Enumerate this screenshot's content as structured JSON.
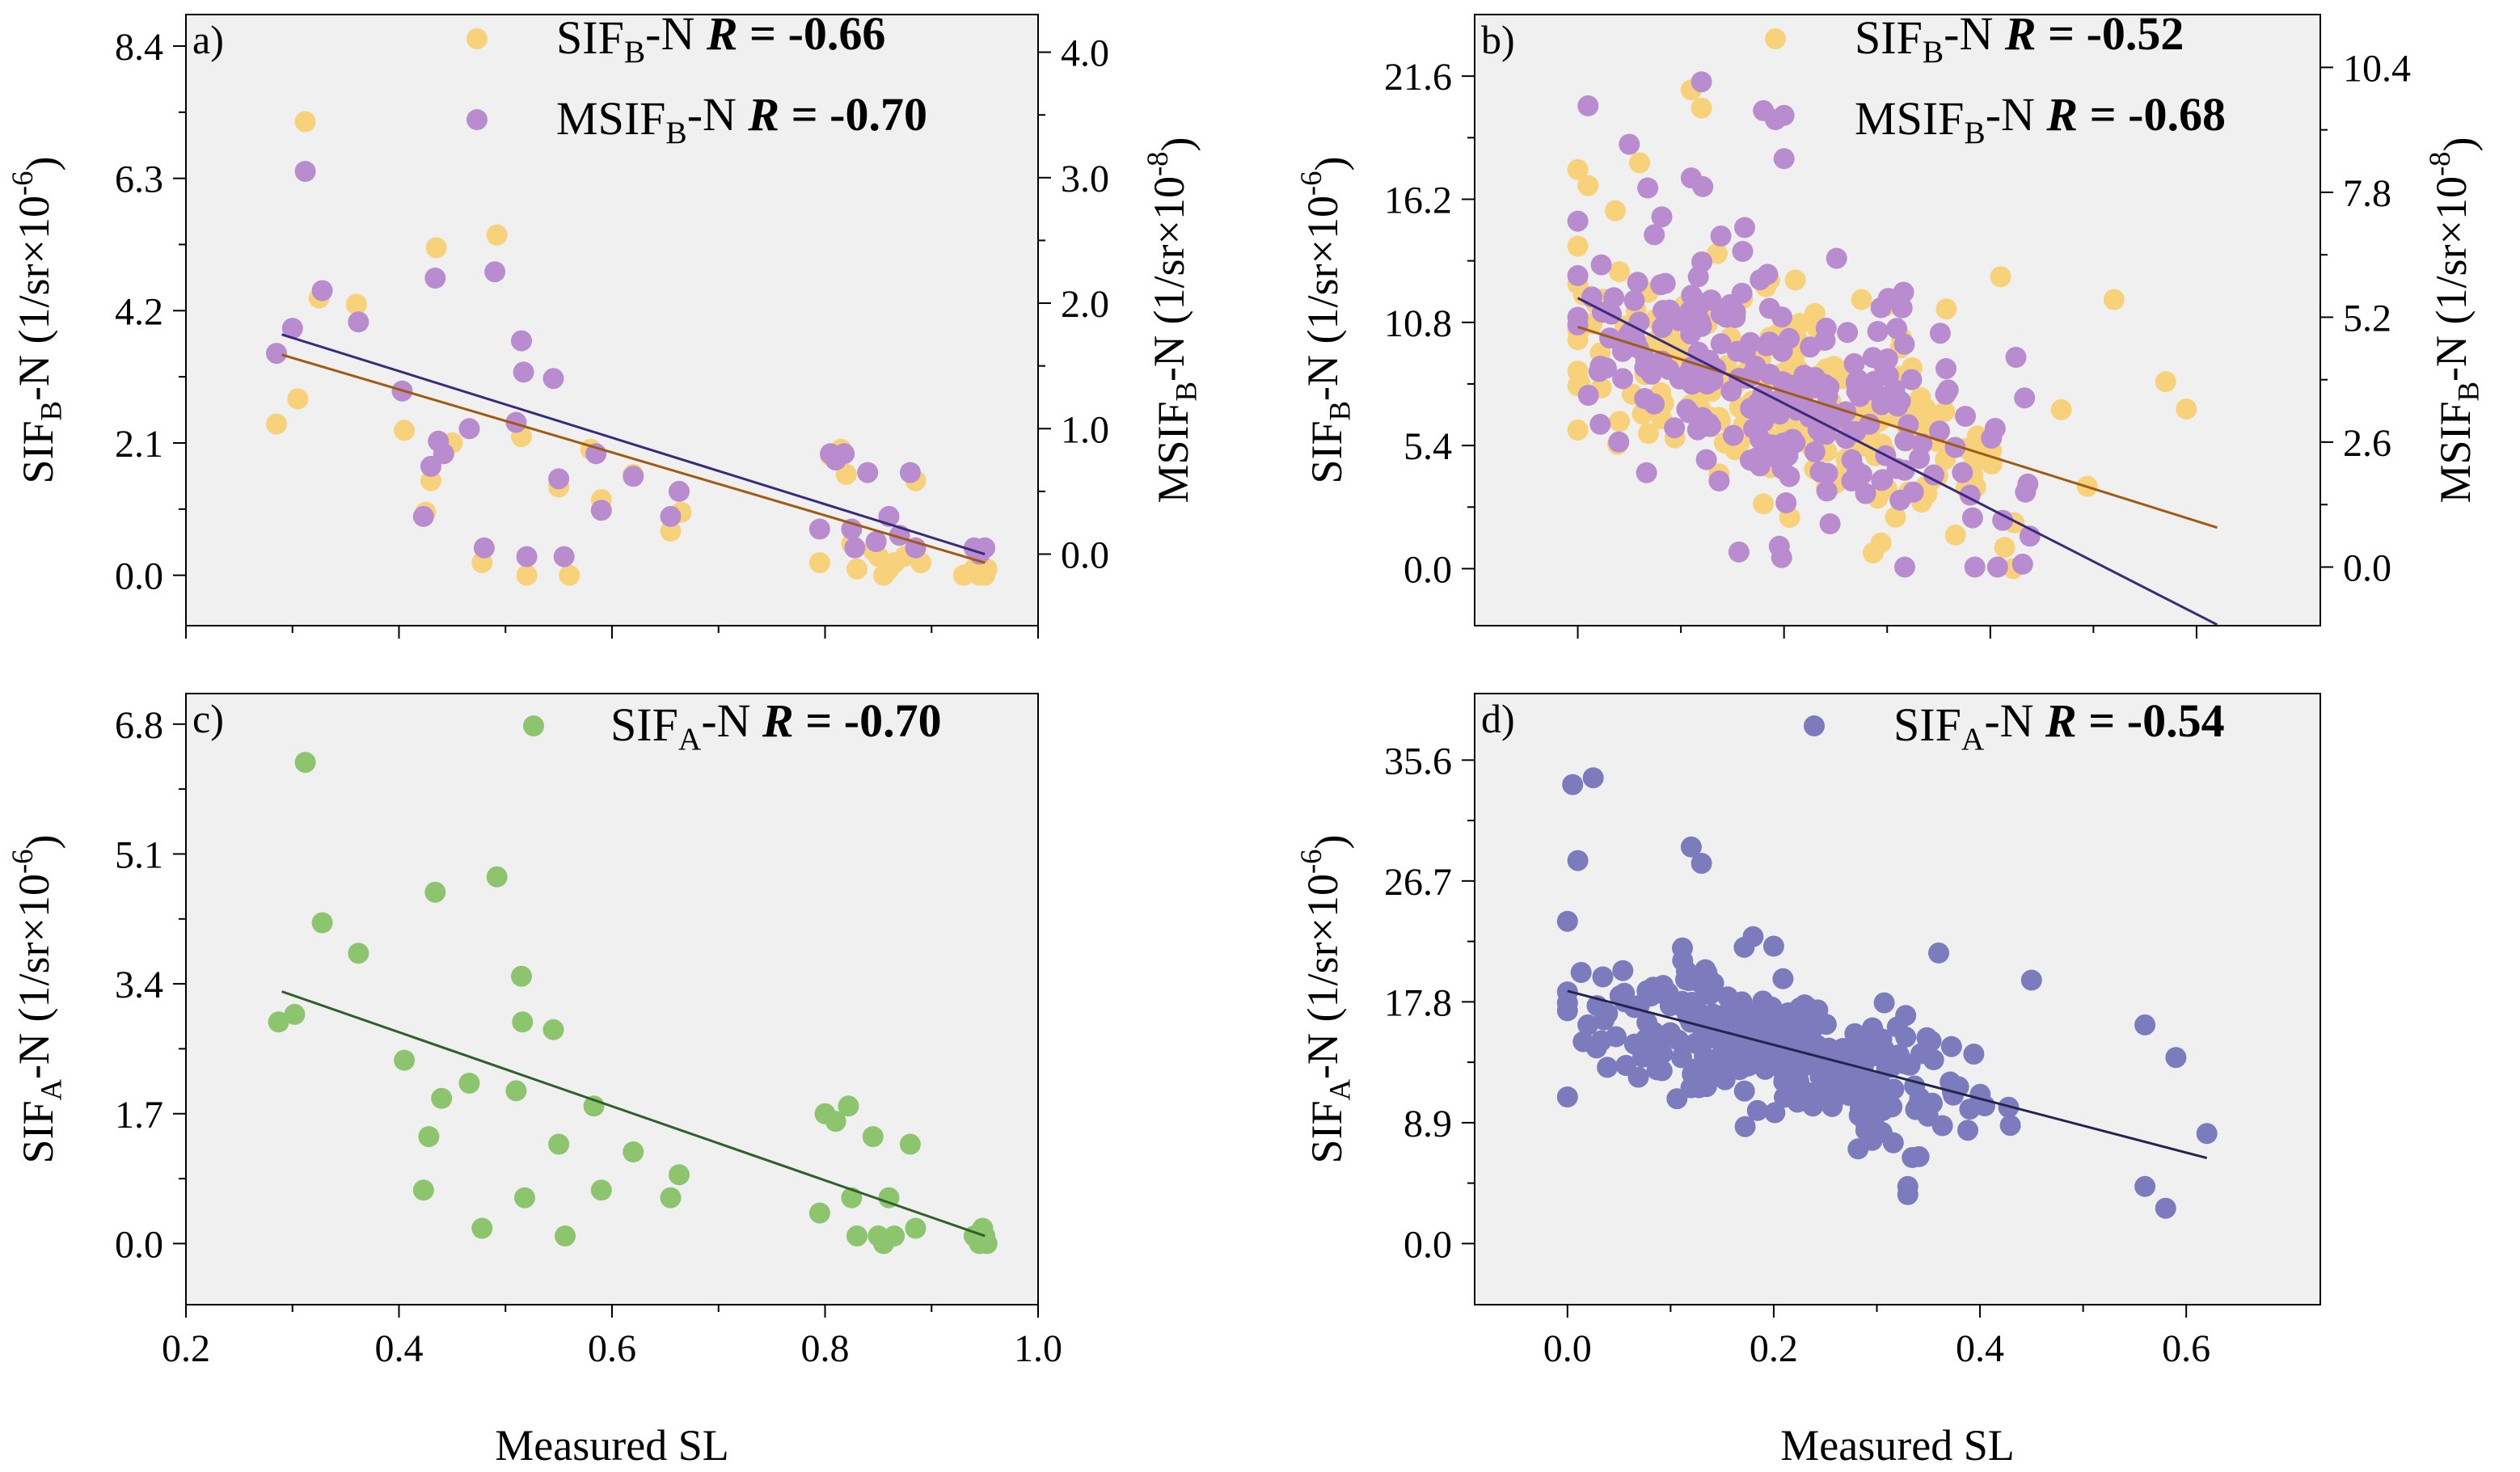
{
  "figure": {
    "xlabel_bottom": "Measured SL",
    "colors": {
      "sif_b": "#f7d27a",
      "msif_b": "#b88ccf",
      "sif_a_c": "#8cc56e",
      "sif_a_d": "#7b7bbd",
      "line_sif_b": "#a05a14",
      "line_msif_b": "#3a2a7a",
      "line_sif_a_c": "#2f5f2a",
      "line_sif_a_d": "#242450",
      "plot_bg": "#f0f0f0"
    }
  },
  "chart_data": [
    {
      "id": "a",
      "type": "scatter",
      "panel_label": "a)",
      "xlim": [
        0.2,
        1.0
      ],
      "ylim": [
        -0.8,
        8.9
      ],
      "y2lim": [
        -0.57,
        4.3
      ],
      "xticks": [
        "0.2",
        "0.4",
        "0.6",
        "0.8",
        "1.0"
      ],
      "xtick_values": [
        0.2,
        0.4,
        0.6,
        0.8,
        1.0
      ],
      "show_xticklabels": false,
      "yticks": [
        "0.0",
        "2.1",
        "4.2",
        "6.3",
        "8.4"
      ],
      "ytick_values": [
        0,
        2.1,
        4.2,
        6.3,
        8.4
      ],
      "y2ticks": [
        "0.0",
        "1.0",
        "2.0",
        "3.0",
        "4.0"
      ],
      "y2tick_values": [
        0,
        1,
        2,
        3,
        4
      ],
      "ylabel": {
        "pre": "SIF",
        "sub": "B",
        "post": "-N (1/sr×10",
        "sup": "-6",
        "end": ")"
      },
      "y2label": {
        "pre": "MSIF",
        "sub": "B",
        "post": "-N (1/sr×10",
        "sup": "-8",
        "end": ")"
      },
      "series": [
        {
          "name": "SIF_B-N",
          "axis": "left",
          "color": "sif_b",
          "legend": {
            "pre": "SIF",
            "sub": "B",
            "post": "-N",
            "r_label": "R",
            "r_value": " = -0.66"
          },
          "fit": {
            "x": [
              0.29,
              0.95
            ],
            "y": [
              3.5,
              0.2
            ]
          },
          "x": [
            0.285,
            0.305,
            0.312,
            0.325,
            0.36,
            0.405,
            0.425,
            0.43,
            0.435,
            0.45,
            0.478,
            0.492,
            0.515,
            0.52,
            0.55,
            0.56,
            0.58,
            0.59,
            0.62,
            0.655,
            0.665,
            0.795,
            0.805,
            0.815,
            0.82,
            0.825,
            0.83,
            0.845,
            0.85,
            0.855,
            0.86,
            0.865,
            0.875,
            0.885,
            0.89,
            0.93,
            0.94,
            0.945,
            0.95,
            0.952
          ],
          "y": [
            2.4,
            2.8,
            7.2,
            4.4,
            4.3,
            2.3,
            1.0,
            1.5,
            5.2,
            2.1,
            0.2,
            5.4,
            2.2,
            0.0,
            1.4,
            0.0,
            2.0,
            1.2,
            1.6,
            0.7,
            1.0,
            0.2,
            1.9,
            2.0,
            1.6,
            0.5,
            0.1,
            0.4,
            0.3,
            0.0,
            0.1,
            0.2,
            0.3,
            1.5,
            0.2,
            0.0,
            0.1,
            0.0,
            0.0,
            0.1
          ]
        },
        {
          "name": "MSIF_B-N",
          "axis": "right",
          "color": "msif_b",
          "legend": {
            "pre": "MSIF",
            "sub": "B",
            "post": "-N ",
            "r_label": "R",
            "r_value": " = -0.70"
          },
          "fit": {
            "x": [
              0.29,
              0.95
            ],
            "y": [
              1.75,
              0.0
            ]
          },
          "x": [
            0.285,
            0.3,
            0.312,
            0.328,
            0.362,
            0.403,
            0.423,
            0.43,
            0.434,
            0.437,
            0.442,
            0.466,
            0.48,
            0.49,
            0.51,
            0.515,
            0.517,
            0.52,
            0.545,
            0.55,
            0.555,
            0.585,
            0.59,
            0.62,
            0.655,
            0.663,
            0.795,
            0.805,
            0.81,
            0.818,
            0.825,
            0.828,
            0.84,
            0.848,
            0.86,
            0.87,
            0.88,
            0.885,
            0.94,
            0.945,
            0.95
          ],
          "y": [
            1.6,
            1.8,
            3.05,
            2.1,
            1.85,
            1.3,
            0.3,
            0.7,
            2.2,
            0.9,
            0.8,
            1.0,
            0.05,
            2.25,
            1.05,
            1.7,
            1.45,
            -0.02,
            1.4,
            0.6,
            -0.02,
            0.8,
            0.35,
            0.62,
            0.3,
            0.5,
            0.2,
            0.8,
            0.75,
            0.8,
            0.2,
            0.05,
            0.65,
            0.1,
            0.3,
            0.15,
            0.65,
            0.05,
            0.05,
            0.0,
            0.05
          ]
        }
      ]
    },
    {
      "id": "b",
      "type": "scatter",
      "panel_label": "b)",
      "xlim": [
        -0.1,
        0.72
      ],
      "ylim": [
        -2.5,
        24.3
      ],
      "y2lim": [
        -1.22,
        11.5
      ],
      "xticks": [
        "0.0",
        "0.2",
        "0.4",
        "0.6"
      ],
      "xtick_values": [
        0,
        0.2,
        0.4,
        0.6
      ],
      "show_xticklabels": false,
      "yticks": [
        "0.0",
        "5.4",
        "10.8",
        "16.2",
        "21.6"
      ],
      "ytick_values": [
        0,
        5.4,
        10.8,
        16.2,
        21.6
      ],
      "y2ticks": [
        "0.0",
        "2.6",
        "5.2",
        "7.8",
        "10.4"
      ],
      "y2tick_values": [
        0,
        2.6,
        5.2,
        7.8,
        10.4
      ],
      "ylabel": {
        "pre": "SIF",
        "sub": "B",
        "post": "-N (1/sr×10",
        "sup": "-6",
        "end": ")"
      },
      "y2label": {
        "pre": "MSIF",
        "sub": "B",
        "post": "-N (1/sr×10",
        "sup": "-8",
        "end": ")"
      },
      "series": [
        {
          "name": "SIF_B-N",
          "axis": "left",
          "color": "sif_b",
          "legend": {
            "pre": "SIF",
            "sub": "B",
            "post": "-N",
            "r_label": "R",
            "r_value": " = -0.52"
          },
          "fit": {
            "x": [
              0.0,
              0.62
            ],
            "y": [
              10.6,
              1.8
            ]
          },
          "cloud": {
            "n": 230,
            "x_mean": 0.2,
            "x_spread": 0.2,
            "x_range": [
              0.0,
              0.62
            ],
            "intercept": 10.6,
            "slope": -14.2,
            "noise": 4.3,
            "y_range": [
              0.0,
              21.0
            ],
            "seed": 11
          },
          "x": [
            0.11,
            0.12,
            0.0,
            0.01,
            0.52,
            0.59,
            0.57,
            0.41,
            0.06
          ],
          "y": [
            21.0,
            20.2,
            17.5,
            16.8,
            11.8,
            7.0,
            8.2,
            12.8,
            17.8
          ]
        },
        {
          "name": "MSIF_B-N",
          "axis": "right",
          "color": "msif_b",
          "legend": {
            "pre": "MSIF",
            "sub": "B",
            "post": "-N ",
            "r_label": "R",
            "r_value": " = -0.68"
          },
          "fit": {
            "x": [
              0.0,
              0.62
            ],
            "y": [
              5.6,
              -1.2
            ]
          },
          "cloud": {
            "n": 240,
            "x_mean": 0.2,
            "x_spread": 0.2,
            "x_range": [
              0.0,
              0.62
            ],
            "intercept": 5.4,
            "slope": -9.0,
            "noise": 2.3,
            "y_range": [
              0.0,
              10.3
            ],
            "seed": 23
          },
          "x": [
            0.01,
            0.12,
            0.18,
            0.2,
            0.2,
            0.11,
            0.05,
            0.0
          ],
          "y": [
            9.6,
            10.1,
            9.5,
            9.4,
            8.5,
            8.1,
            8.8,
            7.2
          ]
        }
      ]
    },
    {
      "id": "c",
      "type": "scatter",
      "panel_label": "c)",
      "xlim": [
        0.2,
        1.0
      ],
      "ylim": [
        -0.8,
        7.2
      ],
      "xticks": [
        "0.2",
        "0.4",
        "0.6",
        "0.8",
        "1.0"
      ],
      "xtick_values": [
        0.2,
        0.4,
        0.6,
        0.8,
        1.0
      ],
      "show_xticklabels": true,
      "xlabel": "Measured SL",
      "yticks": [
        "0.0",
        "1.7",
        "3.4",
        "5.1",
        "6.8"
      ],
      "ytick_values": [
        0,
        1.7,
        3.4,
        5.1,
        6.8
      ],
      "ylabel": {
        "pre": "SIF",
        "sub": "A",
        "post": "-N (1/sr×10",
        "sup": "-6",
        "end": ")"
      },
      "series": [
        {
          "name": "SIF_A-N",
          "axis": "left",
          "color": "sif_a_c",
          "legend": {
            "pre": "SIF",
            "sub": "A",
            "post": "-N ",
            "r_label": "R",
            "r_value": " = -0.70"
          },
          "fit": {
            "x": [
              0.29,
              0.95
            ],
            "y": [
              3.3,
              0.1
            ]
          },
          "x": [
            0.287,
            0.302,
            0.312,
            0.328,
            0.362,
            0.405,
            0.423,
            0.428,
            0.434,
            0.44,
            0.466,
            0.478,
            0.492,
            0.51,
            0.515,
            0.516,
            0.518,
            0.545,
            0.55,
            0.556,
            0.583,
            0.59,
            0.62,
            0.655,
            0.663,
            0.795,
            0.8,
            0.81,
            0.822,
            0.825,
            0.83,
            0.845,
            0.85,
            0.855,
            0.86,
            0.865,
            0.88,
            0.885,
            0.94,
            0.945,
            0.948,
            0.95,
            0.952
          ],
          "y": [
            2.9,
            3.0,
            6.3,
            4.2,
            3.8,
            2.4,
            0.7,
            1.4,
            4.6,
            1.9,
            2.1,
            0.2,
            4.8,
            2.0,
            3.5,
            2.9,
            0.6,
            2.8,
            1.3,
            0.1,
            1.8,
            0.7,
            1.2,
            0.6,
            0.9,
            0.4,
            1.7,
            1.6,
            1.8,
            0.6,
            0.1,
            1.4,
            0.1,
            0.0,
            0.6,
            0.1,
            1.3,
            0.2,
            0.1,
            0.0,
            0.2,
            0.1,
            0.0
          ]
        }
      ]
    },
    {
      "id": "d",
      "type": "scatter",
      "panel_label": "d)",
      "xlim": [
        -0.09,
        0.73
      ],
      "ylim": [
        -4.5,
        40.5
      ],
      "xticks": [
        "0.0",
        "0.2",
        "0.4",
        "0.6"
      ],
      "xtick_values": [
        0,
        0.2,
        0.4,
        0.6
      ],
      "show_xticklabels": true,
      "xlabel": "Measured SL",
      "yticks": [
        "0.0",
        "8.9",
        "17.8",
        "26.7",
        "35.6"
      ],
      "ytick_values": [
        0,
        8.9,
        17.8,
        26.7,
        35.6
      ],
      "ylabel": {
        "pre": "SIF",
        "sub": "A",
        "post": "-N (1/sr×10",
        "sup": "-6",
        "end": ")"
      },
      "series": [
        {
          "name": "SIF_A-N",
          "axis": "left",
          "color": "sif_a_d",
          "legend": {
            "pre": "SIF",
            "sub": "A",
            "post": "-N ",
            "r_label": "R",
            "r_value": " = -0.54"
          },
          "fit": {
            "x": [
              0.0,
              0.62
            ],
            "y": [
              18.6,
              6.3
            ]
          },
          "cloud": {
            "n": 300,
            "x_mean": 0.2,
            "x_spread": 0.18,
            "x_range": [
              0.0,
              0.62
            ],
            "intercept": 18.4,
            "slope": -21.0,
            "noise": 4.2,
            "y_range": [
              2.5,
              30.0
            ],
            "seed": 37
          },
          "x": [
            0.005,
            0.025,
            0.01,
            0.12,
            0.13,
            0.18,
            0.2,
            0.36,
            0.45,
            0.56,
            0.59,
            0.58,
            0.56,
            0.62,
            0.33,
            0.33,
            0.0
          ],
          "y": [
            33.8,
            34.3,
            28.2,
            29.2,
            28.0,
            22.6,
            21.9,
            21.4,
            19.4,
            16.1,
            13.7,
            2.6,
            4.2,
            8.1,
            4.2,
            3.6,
            10.8
          ]
        }
      ]
    }
  ]
}
